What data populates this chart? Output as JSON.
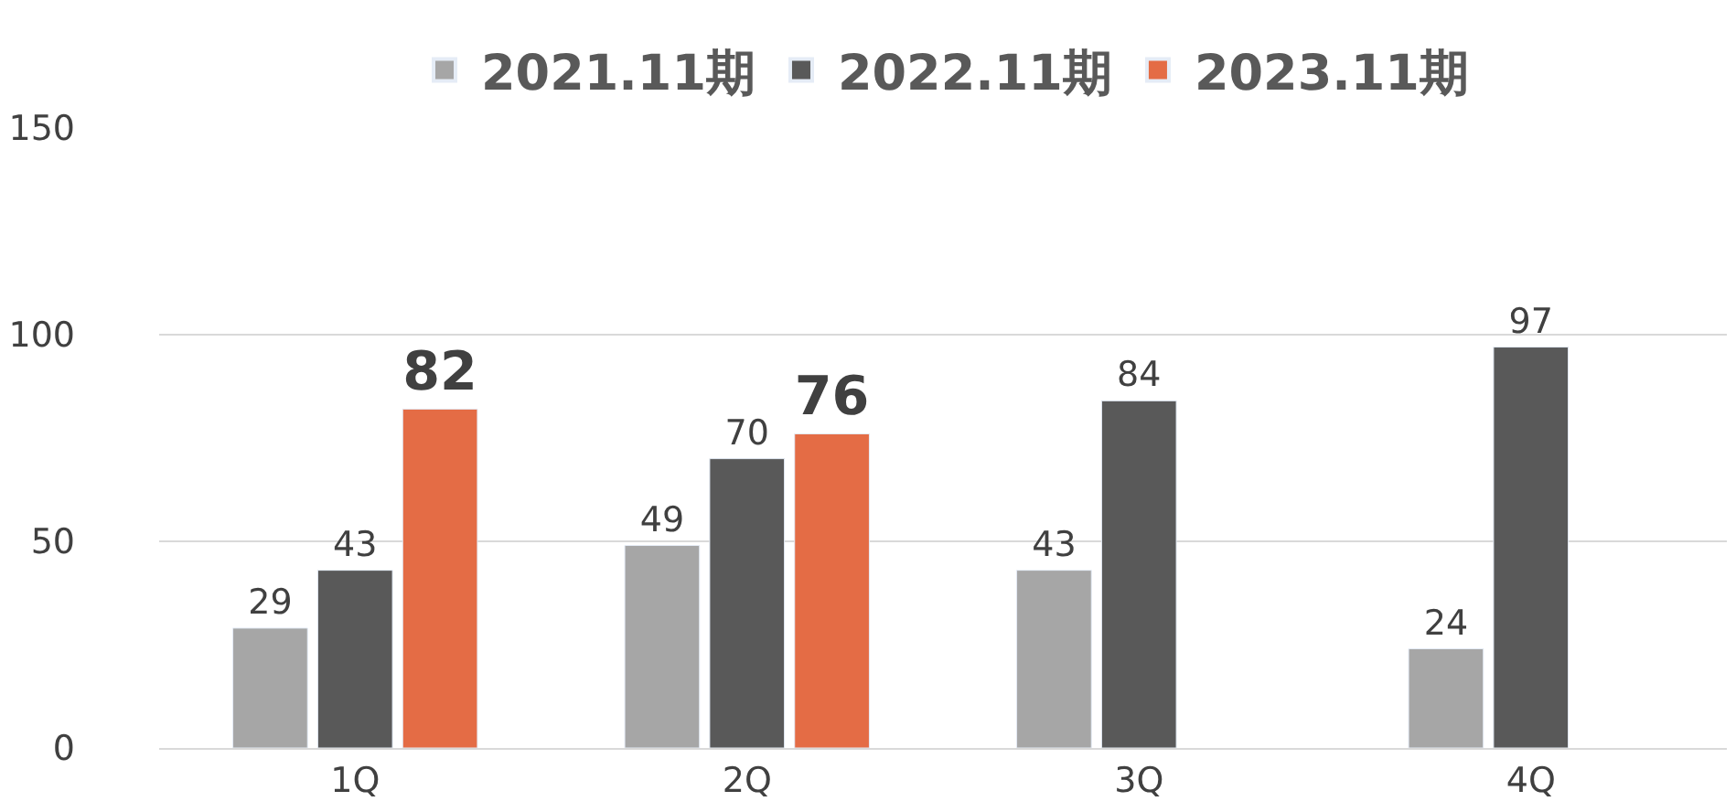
{
  "chart_data": {
    "type": "bar",
    "categories": [
      "1Q",
      "2Q",
      "3Q",
      "4Q"
    ],
    "series": [
      {
        "name": "2021.11期",
        "color": "#a6a6a6",
        "values": [
          29,
          49,
          43,
          24
        ]
      },
      {
        "name": "2022.11期",
        "color": "#595959",
        "values": [
          43,
          70,
          84,
          97
        ]
      },
      {
        "name": "2023.11期",
        "color": "#e46c45",
        "values": [
          82,
          76,
          null,
          null
        ]
      }
    ],
    "ylim": [
      0,
      150
    ],
    "yticks": [
      0,
      50,
      100,
      150
    ],
    "grid": "y",
    "legend": "top",
    "data_labels": true
  }
}
